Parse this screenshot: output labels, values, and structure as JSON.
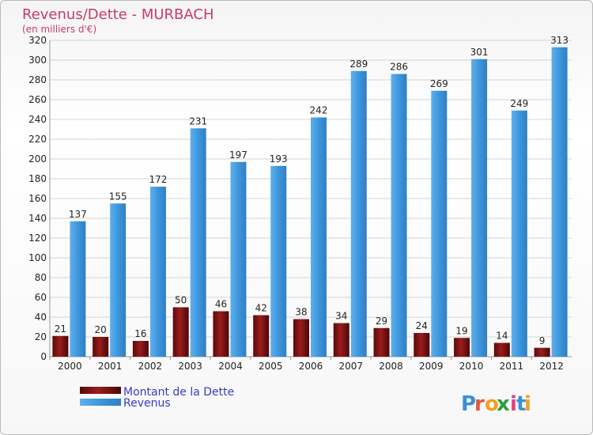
{
  "chart_data": {
    "type": "bar",
    "title": "Revenus/Dette - MURBACH",
    "subtitle": "(en milliers d'€)",
    "xlabel": "",
    "ylabel": "",
    "categories": [
      "2000",
      "2001",
      "2002",
      "2003",
      "2004",
      "2005",
      "2006",
      "2007",
      "2008",
      "2009",
      "2010",
      "2011",
      "2012"
    ],
    "series": [
      {
        "name": "Montant de la Dette",
        "color": "#7a1010",
        "values": [
          21,
          20,
          16,
          50,
          46,
          42,
          38,
          34,
          29,
          24,
          19,
          14,
          9
        ]
      },
      {
        "name": "Revenus",
        "color": "#3d96dc",
        "values": [
          137,
          155,
          172,
          231,
          197,
          193,
          242,
          289,
          286,
          269,
          301,
          249,
          313
        ]
      }
    ],
    "ylim": [
      0,
      320
    ],
    "yticks": [
      0,
      20,
      40,
      60,
      80,
      100,
      120,
      140,
      160,
      180,
      200,
      220,
      240,
      260,
      280,
      300,
      320
    ],
    "grid": true,
    "legend_position": "bottom-left",
    "watermark": "Proxiti"
  }
}
